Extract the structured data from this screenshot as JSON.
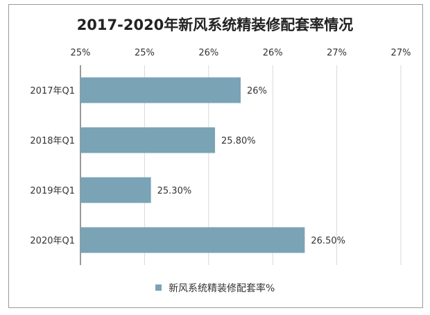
{
  "chart_data": {
    "type": "bar",
    "orientation": "horizontal",
    "title": "2017-2020年新风系统精装修配套率情况",
    "categories": [
      "2017年Q1",
      "2018年Q1",
      "2019年Q1",
      "2020年Q1"
    ],
    "series": [
      {
        "name": "新风系统精装修配套率%",
        "values": [
          26.0,
          25.8,
          25.3,
          26.5
        ],
        "labels": [
          "26%",
          "25.80%",
          "25.30%",
          "26.50%"
        ]
      }
    ],
    "xlim": [
      24.75,
      27.25
    ],
    "x_tick_values": [
      24.75,
      25.25,
      25.75,
      26.25,
      26.75,
      27.25
    ],
    "x_tick_labels": [
      "25%",
      "25%",
      "26%",
      "26%",
      "27%",
      "27%"
    ],
    "x_axis_position": "top",
    "grid": "vertical",
    "legend": "bottom",
    "colors": {
      "bar": "#7aa3b5",
      "grid": "#d9d9d9",
      "axis": "#333333",
      "text": "#333333"
    }
  }
}
